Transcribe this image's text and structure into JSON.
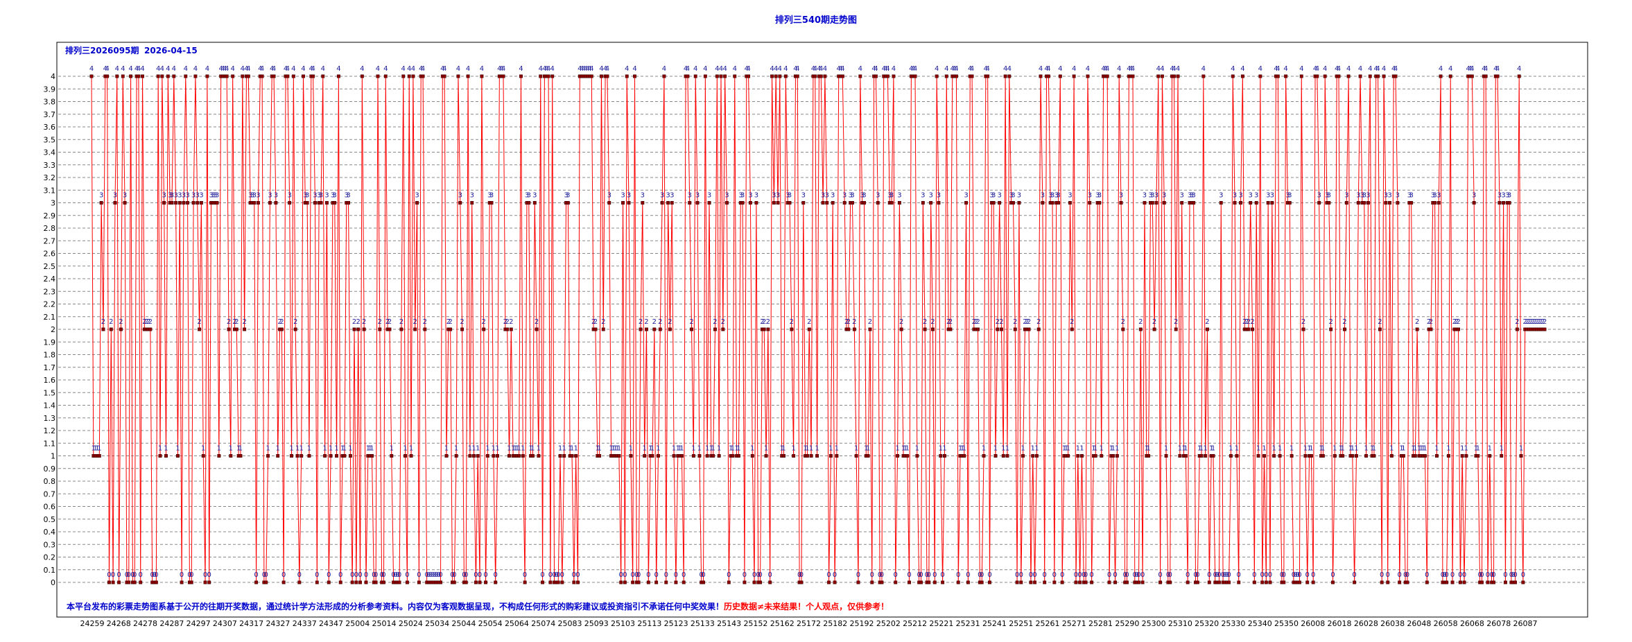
{
  "chart_data": {
    "type": "line",
    "title": "排列三540期走势图",
    "header": {
      "issue_label": "排列三2026095期",
      "date": "2026-04-15"
    },
    "ylim": [
      0,
      4
    ],
    "yticks": [
      "0",
      "0.1",
      "0.2",
      "0.3",
      "0.4",
      "0.5",
      "0.6",
      "0.7",
      "0.8",
      "0.9",
      "1",
      "1.1",
      "1.2",
      "1.3",
      "1.4",
      "1.5",
      "1.6",
      "1.7",
      "1.8",
      "1.9",
      "2",
      "2.1",
      "2.2",
      "2.3",
      "2.4",
      "2.5",
      "2.6",
      "2.7",
      "2.8",
      "2.9",
      "3",
      "3.1",
      "3.2",
      "3.3",
      "3.4",
      "3.5",
      "3.6",
      "3.7",
      "3.8",
      "3.9",
      "4"
    ],
    "xtick_labels": [
      "24259",
      "24268",
      "24278",
      "24287",
      "24297",
      "24307",
      "24317",
      "24327",
      "24337",
      "24347",
      "25004",
      "25014",
      "25024",
      "25034",
      "25044",
      "25054",
      "25064",
      "25074",
      "25083",
      "25093",
      "25103",
      "25113",
      "25123",
      "25133",
      "25143",
      "25152",
      "25162",
      "25172",
      "25182",
      "25192",
      "25202",
      "25212",
      "25221",
      "25231",
      "25241",
      "25251",
      "25261",
      "25271",
      "25281",
      "25290",
      "25300",
      "25310",
      "25320",
      "25330",
      "25340",
      "25350",
      "26008",
      "26018",
      "26028",
      "26038",
      "26048",
      "26058",
      "26068",
      "26078",
      "26087"
    ],
    "values": [
      4,
      1,
      1,
      1,
      1,
      3,
      2,
      4,
      4,
      0,
      2,
      0,
      3,
      4,
      0,
      2,
      4,
      3,
      0,
      0,
      4,
      0,
      0,
      4,
      4,
      0,
      4,
      2,
      2,
      2,
      2,
      0,
      0,
      0,
      4,
      1,
      4,
      3,
      1,
      4,
      3,
      3,
      4,
      3,
      1,
      3,
      0,
      3,
      4,
      3,
      0,
      0,
      3,
      4,
      3,
      2,
      3,
      1,
      0,
      4,
      0,
      3,
      3,
      3,
      3,
      1,
      4,
      4,
      4,
      4,
      2,
      1,
      4,
      2,
      2,
      1,
      1,
      4,
      2,
      4,
      4,
      3,
      3,
      3,
      0,
      3,
      4,
      4,
      0,
      0,
      1,
      3,
      4,
      4,
      3,
      1,
      2,
      2,
      0,
      4,
      4,
      3,
      1,
      4,
      2,
      1,
      0,
      1,
      4,
      3,
      3,
      1,
      4,
      4,
      3,
      0,
      3,
      3,
      4,
      1,
      3,
      0,
      1,
      3,
      3,
      1,
      4,
      0,
      1,
      1,
      3,
      3,
      1,
      0,
      2,
      0,
      2,
      0,
      4,
      2,
      0,
      1,
      1,
      1,
      0,
      0,
      4,
      2,
      0,
      0,
      4,
      2,
      2,
      1,
      0,
      0,
      0,
      0,
      2,
      4,
      1,
      0,
      4,
      1,
      4,
      2,
      3,
      0,
      4,
      4,
      2,
      0,
      0,
      0,
      0,
      0,
      0,
      0,
      0,
      4,
      4,
      1,
      2,
      2,
      0,
      0,
      1,
      4,
      3,
      2,
      0,
      0,
      4,
      1,
      3,
      1,
      0,
      1,
      0,
      4,
      2,
      0,
      1,
      3,
      3,
      1,
      0,
      1,
      4,
      4,
      4,
      2,
      2,
      1,
      2,
      1,
      1,
      1,
      1,
      4,
      1,
      0,
      3,
      3,
      1,
      1,
      3,
      2,
      1,
      4,
      0,
      4,
      4,
      4,
      0,
      4,
      0,
      0,
      0,
      1,
      0,
      1,
      3,
      3,
      1,
      1,
      0,
      1,
      0,
      4,
      4,
      4,
      4,
      4,
      4,
      4,
      2,
      2,
      1,
      1,
      4,
      2,
      4,
      4,
      3,
      1,
      1,
      1,
      1,
      1,
      0,
      3,
      0,
      4,
      3,
      1,
      0,
      4,
      0,
      0,
      2,
      3,
      1,
      2,
      0,
      1,
      1,
      2,
      0,
      1,
      2,
      3,
      4,
      0,
      3,
      2,
      3,
      1,
      0,
      1,
      1,
      1,
      0,
      4,
      4,
      3,
      2,
      1,
      4,
      3,
      1,
      0,
      0,
      4,
      1,
      3,
      1,
      1,
      2,
      4,
      1,
      4,
      2,
      4,
      3,
      0,
      1,
      1,
      4,
      1,
      1,
      3,
      3,
      0,
      4,
      4,
      3,
      1,
      0,
      3,
      0,
      0,
      2,
      2,
      1,
      2,
      0,
      4,
      3,
      4,
      3,
      4,
      1,
      1,
      4,
      3,
      3,
      2,
      1,
      4,
      4,
      0,
      0,
      3,
      1,
      1,
      2,
      1,
      4,
      4,
      1,
      4,
      4,
      3,
      4,
      3,
      0,
      1,
      3,
      0,
      1,
      4,
      4,
      4,
      3,
      2,
      2,
      3,
      3,
      2,
      1,
      0,
      4,
      3,
      3,
      1,
      1,
      2,
      0,
      4,
      4,
      3,
      0,
      0,
      4,
      4,
      4,
      3,
      3,
      4,
      0,
      1,
      3,
      2,
      1,
      1,
      1,
      0,
      4,
      4,
      4,
      1,
      0,
      0,
      3,
      2,
      0,
      0,
      3,
      2,
      0,
      4,
      3,
      1,
      0,
      1,
      4,
      2,
      2,
      4,
      4,
      4,
      0,
      1,
      1,
      1,
      3,
      0,
      4,
      4,
      2,
      2,
      2,
      0,
      0,
      1,
      4,
      4,
      0,
      3,
      3,
      1,
      2,
      3,
      2,
      1,
      4,
      1,
      4,
      3,
      3,
      2,
      0,
      3,
      0,
      1,
      2,
      2,
      2,
      0,
      1,
      0,
      1,
      2,
      4,
      3,
      0,
      4,
      4,
      3,
      3,
      0,
      3,
      3,
      4,
      0,
      1,
      1,
      1,
      3,
      2,
      4,
      0,
      1,
      0,
      1,
      0,
      0,
      4,
      3,
      0,
      1,
      1,
      3,
      3,
      1,
      4,
      4,
      4,
      0,
      1,
      1,
      0,
      1,
      4,
      3,
      2,
      0,
      0,
      4,
      4,
      4,
      0,
      0,
      0,
      2,
      0,
      3,
      1,
      1,
      3,
      3,
      2,
      3,
      4,
      0,
      4,
      3,
      1,
      0,
      0,
      4,
      4,
      2,
      4,
      1,
      3,
      1,
      1,
      0,
      3,
      3,
      3,
      0,
      0,
      1,
      1,
      4,
      1,
      2,
      0,
      1,
      1,
      0,
      0,
      0,
      3,
      0,
      0,
      0,
      0,
      1,
      4,
      3,
      1,
      0,
      3,
      4,
      2,
      2,
      2,
      3,
      2,
      0,
      3,
      1,
      4,
      0,
      1,
      0,
      3,
      0,
      3,
      1,
      4,
      4,
      1,
      0,
      0,
      4,
      3,
      3,
      1,
      0,
      0,
      0,
      0,
      4,
      2,
      1,
      0,
      1,
      1,
      0,
      4,
      4,
      3,
      1,
      1,
      4,
      3,
      3,
      2,
      0,
      1,
      4,
      4,
      1,
      1,
      2,
      3,
      4,
      1,
      1,
      0,
      1,
      3,
      4,
      3,
      3,
      1,
      3,
      4,
      1,
      1,
      4,
      4,
      2,
      0,
      4,
      3,
      0,
      3,
      1,
      4,
      4,
      3,
      0,
      1,
      1,
      0,
      0,
      3,
      3,
      1,
      1,
      2,
      1,
      1,
      1,
      1,
      0,
      2,
      2,
      3,
      3,
      1,
      3,
      4,
      0,
      0,
      0,
      1,
      4,
      0,
      2,
      2,
      2,
      0,
      1,
      0,
      1,
      4,
      4,
      4,
      3,
      1,
      1,
      0,
      0,
      4,
      4,
      0,
      1,
      0,
      0,
      4,
      4,
      3,
      1,
      3,
      0,
      3,
      3,
      0,
      0,
      0,
      2,
      4,
      1,
      0,
      2,
      2,
      2,
      2,
      2,
      2,
      2,
      2,
      2,
      2,
      2
    ],
    "line_color": "#ff0000",
    "marker_color": "#8b0000",
    "label_color": "#1a1a9a",
    "grid": "horizontal-dashed",
    "disclaimer": "本平台发布的彩票走势图系基于公开的往期开奖数据，通过统计学方法形成的分析参考资料。内容仅为客观数据呈现，不构成任何形式的购彩建议或投资指引不承诺任何中奖效果！",
    "disclaimer_highlight": "历史数据≠未来结果！个人观点，仅供参考！"
  }
}
